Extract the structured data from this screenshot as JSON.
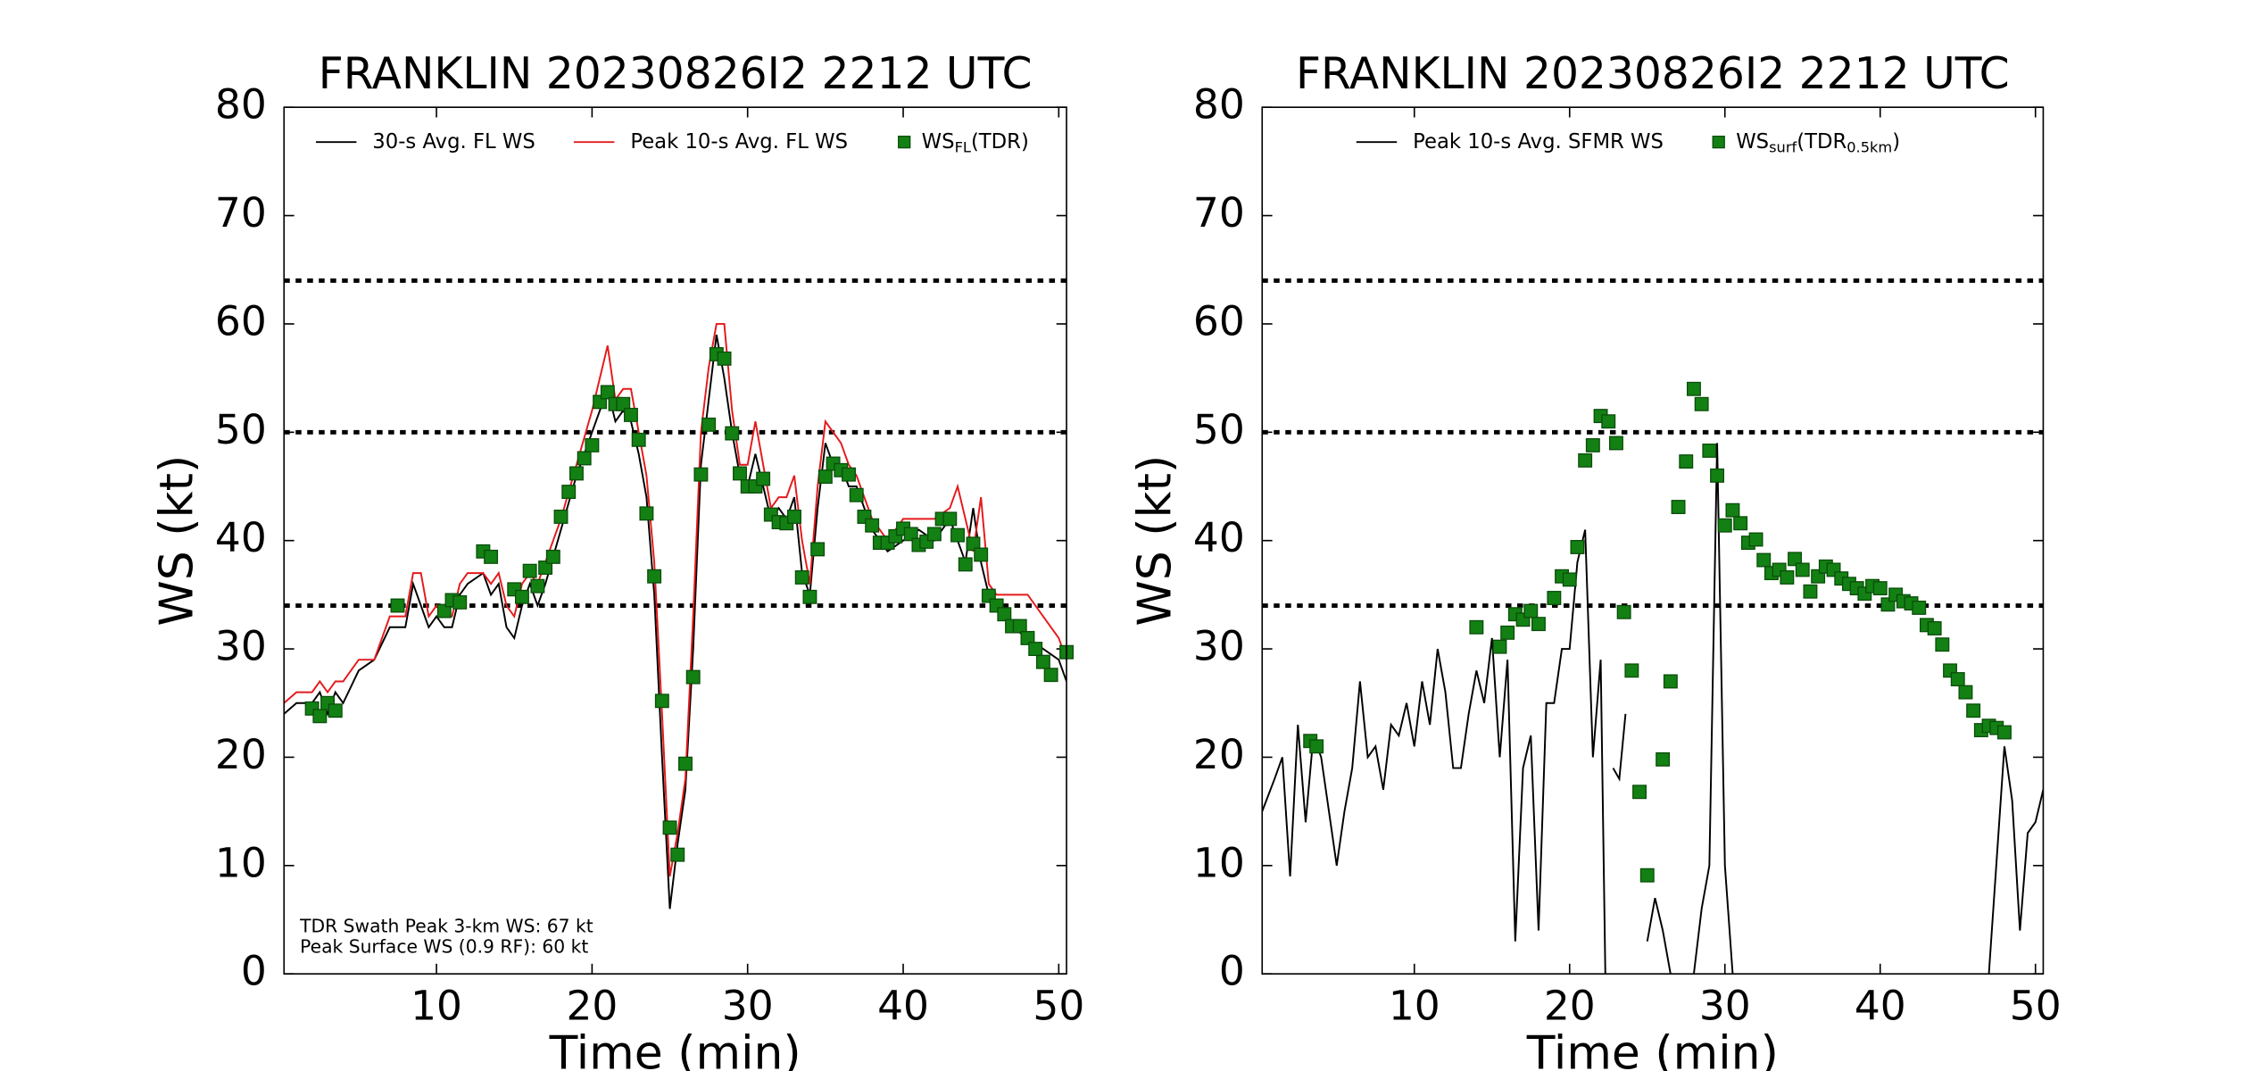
{
  "chart_data": [
    {
      "type": "line",
      "title": "FRANKLIN 20230826I2 2212 UTC",
      "xlabel": "Time (min)",
      "ylabel": "WS (kt)",
      "xlim": [
        0.2,
        50.5
      ],
      "ylim": [
        0,
        80
      ],
      "xticks": [
        10,
        20,
        30,
        40,
        50
      ],
      "yticks": [
        0,
        10,
        20,
        30,
        40,
        50,
        60,
        70,
        80
      ],
      "hlines": [
        34,
        50,
        64
      ],
      "annotations": [
        "TDR Swath Peak 3-km WS: 67 kt",
        "Peak Surface WS (0.9 RF): 60 kt"
      ],
      "series": [
        {
          "name": [
            "30-s Avg. FL WS"
          ],
          "color": "#000000",
          "marker": "line",
          "x": [
            0.2,
            1,
            2,
            2.5,
            3,
            3.5,
            4,
            5,
            6,
            7,
            8,
            8.5,
            9,
            9.5,
            10,
            10.5,
            11,
            11.5,
            12,
            13,
            13.5,
            14,
            14.5,
            15,
            15.5,
            16,
            16.5,
            17,
            18,
            19,
            20,
            20.5,
            21,
            21.5,
            22,
            22.5,
            23,
            23.5,
            24,
            24.5,
            25,
            25.5,
            26,
            26.5,
            27,
            27.5,
            28,
            28.5,
            29,
            29.5,
            30,
            30.5,
            31,
            31.5,
            32,
            32.5,
            33,
            33.5,
            34,
            34.5,
            35,
            35.5,
            36,
            36.5,
            37,
            38,
            39,
            40,
            41,
            42,
            43,
            43.5,
            44,
            44.5,
            45,
            45.5,
            46,
            47,
            48,
            49,
            50,
            50.5
          ],
          "values": [
            24,
            25,
            25,
            26,
            24,
            26,
            25,
            28,
            29,
            32,
            32,
            36,
            34,
            32,
            33,
            32,
            32,
            35,
            36,
            37,
            35,
            36,
            32,
            31,
            34,
            36,
            34,
            36,
            41,
            46,
            50,
            52,
            54,
            51,
            52,
            51,
            48,
            44,
            35,
            20,
            6,
            12,
            17,
            30,
            47,
            53,
            59,
            55,
            50,
            46,
            45,
            48,
            45,
            42,
            43,
            42,
            44,
            37,
            35,
            43,
            49,
            47,
            47,
            45,
            45,
            41,
            39,
            40,
            41,
            40,
            42,
            40,
            38,
            43,
            38,
            35,
            34,
            32,
            31,
            30,
            29,
            27
          ]
        },
        {
          "name": [
            "Peak 10-s Avg. FL WS"
          ],
          "color": "#e41a1c",
          "marker": "line",
          "x": [
            0.2,
            1,
            2,
            2.5,
            3,
            3.5,
            4,
            5,
            6,
            7,
            8,
            8.5,
            9,
            9.5,
            10,
            10.5,
            11,
            11.5,
            12,
            13,
            13.5,
            14,
            14.5,
            15,
            15.5,
            16,
            16.5,
            17,
            18,
            19,
            20,
            20.5,
            21,
            21.5,
            22,
            22.5,
            23,
            23.5,
            24,
            24.5,
            25,
            25.5,
            26,
            26.5,
            27,
            27.5,
            28,
            28.5,
            29,
            29.5,
            30,
            30.5,
            31,
            31.5,
            32,
            32.5,
            33,
            33.5,
            34,
            34.5,
            35,
            35.5,
            36,
            36.5,
            37,
            38,
            39,
            40,
            41,
            42,
            43,
            43.5,
            44,
            44.5,
            45,
            45.5,
            46,
            47,
            48,
            49,
            50,
            50.5
          ],
          "values": [
            25,
            26,
            26,
            27,
            26,
            27,
            27,
            29,
            29,
            33,
            33,
            37,
            37,
            33,
            34,
            33,
            33,
            36,
            37,
            37,
            36,
            37,
            34,
            33,
            36,
            37,
            36,
            38,
            42,
            47,
            52,
            55,
            58,
            53,
            54,
            54,
            50,
            46,
            38,
            24,
            9,
            13,
            18,
            33,
            50,
            56,
            60,
            60,
            52,
            47,
            47,
            51,
            47,
            43,
            44,
            44,
            46,
            40,
            36,
            45,
            51,
            50,
            49,
            47,
            46,
            42,
            40,
            42,
            42,
            42,
            43,
            45,
            42,
            39,
            44,
            36,
            35,
            35,
            35,
            33,
            31,
            29
          ]
        },
        {
          "name": [
            "WS",
            "FL",
            "(TDR)"
          ],
          "color": "#138013",
          "marker": "square",
          "x": [
            2,
            2.5,
            3,
            3.5,
            7.5,
            10.5,
            11,
            11.5,
            13,
            13.5,
            15,
            15.5,
            16,
            16.5,
            17,
            17.5,
            18,
            18.5,
            19,
            19.5,
            20,
            20.5,
            21,
            21.5,
            22,
            22.5,
            23,
            23.5,
            24,
            24.5,
            25,
            25.5,
            26,
            26.5,
            27,
            27.5,
            28,
            28.5,
            29,
            29.5,
            30,
            30.5,
            31,
            31.5,
            32,
            32.5,
            33,
            33.5,
            34,
            34.5,
            35,
            35.5,
            36,
            36.5,
            37,
            37.5,
            38,
            38.5,
            39,
            39.5,
            40,
            40.5,
            41,
            41.5,
            42,
            42.5,
            43,
            43.5,
            44,
            44.5,
            45,
            45.5,
            46,
            46.5,
            47,
            47.5,
            48,
            48.5,
            49,
            49.5,
            50.5
          ],
          "values": [
            24.5,
            23.8,
            25,
            24.3,
            34,
            33.5,
            34.5,
            34.3,
            39,
            38.5,
            35.5,
            34.8,
            37.2,
            35.8,
            37.5,
            38.5,
            42.2,
            44.5,
            46.2,
            47.6,
            48.8,
            52.8,
            53.7,
            52.6,
            52.6,
            51.6,
            49.3,
            42.5,
            36.7,
            25.2,
            13.5,
            11,
            19.4,
            27.4,
            46.1,
            50.7,
            57.2,
            56.8,
            49.9,
            46.2,
            45,
            45,
            45.7,
            42.4,
            41.7,
            41.6,
            42.2,
            36.6,
            34.8,
            39.2,
            45.9,
            47.1,
            46.5,
            46.1,
            44.2,
            42.2,
            41.4,
            39.8,
            39.8,
            40.4,
            41.1,
            40.6,
            39.6,
            39.9,
            40.6,
            42,
            42,
            40.5,
            37.8,
            39.7,
            38.7,
            34.9,
            34,
            33.2,
            32.1,
            32.1,
            31,
            30,
            28.8,
            27.6,
            29.7
          ]
        }
      ]
    },
    {
      "type": "line",
      "title": "FRANKLIN 20230826I2 2212 UTC",
      "xlabel": "Time (min)",
      "ylabel": "WS (kt)",
      "xlim": [
        0.2,
        50.5
      ],
      "ylim": [
        0,
        80
      ],
      "xticks": [
        10,
        20,
        30,
        40,
        50
      ],
      "yticks": [
        0,
        10,
        20,
        30,
        40,
        50,
        60,
        70,
        80
      ],
      "hlines": [
        34,
        50,
        64
      ],
      "series": [
        {
          "name": [
            "Peak 10-s Avg. SFMR WS"
          ],
          "color": "#000000",
          "marker": "line",
          "x": [
            0.2,
            1,
            1.5,
            2,
            2.5,
            3,
            3.5,
            4,
            5,
            5.5,
            6,
            6.5,
            7,
            7.5,
            8,
            8.5,
            9,
            9.5,
            10,
            10.5,
            11,
            11.5,
            12,
            12.5,
            13,
            13.5,
            14,
            14.5,
            15,
            15.5,
            16,
            16.5,
            17,
            17.5,
            18,
            18.5,
            19,
            19.5,
            20,
            20.5,
            21,
            21.5,
            22,
            22.3,
            22.6,
            22.8,
            23.2,
            23.6,
            24.5,
            25,
            25.5,
            26,
            26.5,
            27.5,
            28,
            28.5,
            29,
            29.5,
            30,
            30.5,
            31,
            47,
            48,
            48.5,
            49,
            49.5,
            50,
            50.5
          ],
          "values": [
            15,
            18,
            20,
            9,
            23,
            14,
            22,
            20,
            10,
            15,
            19,
            27,
            20,
            21,
            17,
            23,
            22,
            25,
            21,
            27,
            23,
            30,
            26,
            19,
            19,
            24,
            28,
            25,
            31,
            20,
            29,
            3,
            19,
            22,
            4,
            25,
            25,
            30,
            30,
            38,
            41,
            20,
            29,
            0,
            null,
            19,
            18,
            24,
            null,
            3,
            7,
            4,
            0,
            null,
            0,
            6,
            10,
            49,
            10,
            0,
            null,
            0,
            21,
            16,
            4,
            13,
            14,
            17
          ]
        },
        {
          "name": [
            "WS",
            "surf",
            "(TDR",
            "0.5km",
            ")"
          ],
          "color": "#138013",
          "marker": "square",
          "x": [
            3.3,
            3.7,
            14,
            15.5,
            16,
            16.5,
            17,
            17.5,
            18,
            19,
            19.5,
            20,
            20.5,
            21,
            21.5,
            22,
            22.5,
            23,
            23.5,
            24,
            24.5,
            25,
            26,
            26.5,
            27,
            27.5,
            28,
            28.5,
            29,
            29.5,
            30,
            30.5,
            31,
            31.5,
            32,
            32.5,
            33,
            33.5,
            34,
            34.5,
            35,
            35.5,
            36,
            36.5,
            37,
            37.5,
            38,
            38.5,
            39,
            39.5,
            40,
            40.5,
            41,
            41.5,
            42,
            42.5,
            43,
            43.5,
            44,
            44.5,
            45,
            45.5,
            46,
            46.5,
            47,
            47.5,
            48
          ],
          "values": [
            21.5,
            21,
            32,
            30.2,
            31.5,
            33.2,
            32.7,
            33.5,
            32.3,
            34.7,
            36.7,
            36.4,
            39.4,
            47.4,
            48.8,
            51.5,
            51,
            49,
            33.4,
            28,
            16.8,
            9.1,
            19.8,
            27,
            43.1,
            47.3,
            54,
            52.6,
            48.3,
            46,
            41.4,
            42.8,
            41.6,
            39.8,
            40.1,
            38.2,
            37,
            37.3,
            36.6,
            38.3,
            37.3,
            35.3,
            36.7,
            37.6,
            37.3,
            36.5,
            36,
            35.6,
            35.1,
            35.8,
            35.6,
            34.1,
            35,
            34.4,
            34.2,
            33.8,
            32.2,
            31.9,
            30.4,
            28,
            27.2,
            26,
            24.3,
            22.5,
            22.9,
            22.7,
            22.3
          ]
        }
      ]
    }
  ]
}
